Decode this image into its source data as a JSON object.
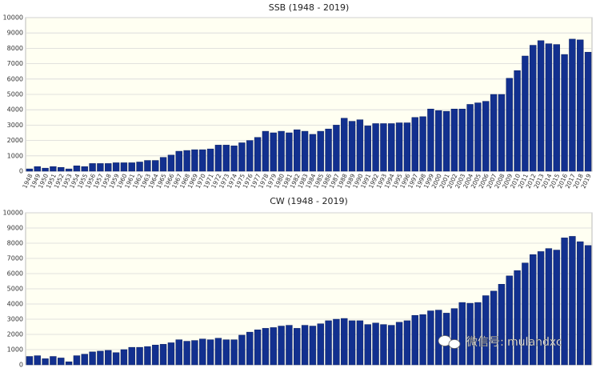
{
  "chart_data": [
    {
      "type": "bar",
      "title": "SSB (1948 - 2019)",
      "color": "#12308f",
      "categories": [
        "1948",
        "1949",
        "1950",
        "1951",
        "1952",
        "1953",
        "1954",
        "1955",
        "1956",
        "1957",
        "1958",
        "1959",
        "1960",
        "1961",
        "1962",
        "1963",
        "1964",
        "1965",
        "1966",
        "1967",
        "1968",
        "1969",
        "1970",
        "1971",
        "1972",
        "1973",
        "1974",
        "1975",
        "1976",
        "1977",
        "1978",
        "1979",
        "1980",
        "1981",
        "1982",
        "1983",
        "1984",
        "1985",
        "1986",
        "1987",
        "1988",
        "1989",
        "1990",
        "1991",
        "1992",
        "1993",
        "1994",
        "1995",
        "1996",
        "1997",
        "1998",
        "1999",
        "2000",
        "2001",
        "2002",
        "2003",
        "2004",
        "2005",
        "2006",
        "2007",
        "2008",
        "2009",
        "2010",
        "2011",
        "2012",
        "2013",
        "2014",
        "2015",
        "2016",
        "2017",
        "2018",
        "2019"
      ],
      "values": [
        150,
        300,
        200,
        300,
        250,
        150,
        350,
        300,
        500,
        500,
        500,
        550,
        550,
        550,
        600,
        700,
        700,
        900,
        1050,
        1300,
        1350,
        1400,
        1400,
        1450,
        1700,
        1700,
        1650,
        1850,
        2000,
        2200,
        2600,
        2500,
        2600,
        2500,
        2700,
        2600,
        2400,
        2600,
        2750,
        3000,
        3450,
        3250,
        3350,
        2950,
        3100,
        3100,
        3100,
        3150,
        3150,
        3500,
        3550,
        4050,
        3950,
        3900,
        4050,
        4050,
        4350,
        4450,
        4550,
        5000,
        5000,
        6050,
        6550,
        7500,
        8200,
        8500,
        8300,
        8250,
        7600,
        8600,
        8550,
        7750
      ],
      "ylim": [
        0,
        10000
      ],
      "yticks": [
        0,
        1000,
        2000,
        3000,
        4000,
        5000,
        6000,
        7000,
        8000,
        9000,
        10000
      ],
      "grid": true
    },
    {
      "type": "bar",
      "title": "CW (1948 - 2019)",
      "color": "#12308f",
      "values": [
        550,
        600,
        400,
        550,
        450,
        200,
        600,
        700,
        850,
        900,
        950,
        800,
        1000,
        1150,
        1150,
        1200,
        1300,
        1350,
        1450,
        1650,
        1550,
        1600,
        1700,
        1650,
        1750,
        1650,
        1650,
        1950,
        2150,
        2300,
        2400,
        2450,
        2550,
        2600,
        2400,
        2600,
        2550,
        2700,
        2900,
        3000,
        3050,
        2900,
        2900,
        2650,
        2750,
        2650,
        2600,
        2800,
        2900,
        3250,
        3300,
        3550,
        3600,
        3400,
        3700,
        4100,
        4050,
        4100,
        4550,
        4850,
        5300,
        5850,
        6200,
        6700,
        7250,
        7450,
        7650,
        7550,
        8350,
        8450,
        8100,
        7850
      ],
      "ylim": [
        0,
        10000
      ],
      "yticks": [
        0,
        1000,
        2000,
        3000,
        4000,
        5000,
        6000,
        7000,
        8000,
        9000,
        10000
      ],
      "grid": true
    }
  ],
  "watermark": "微信号: mulandxc"
}
